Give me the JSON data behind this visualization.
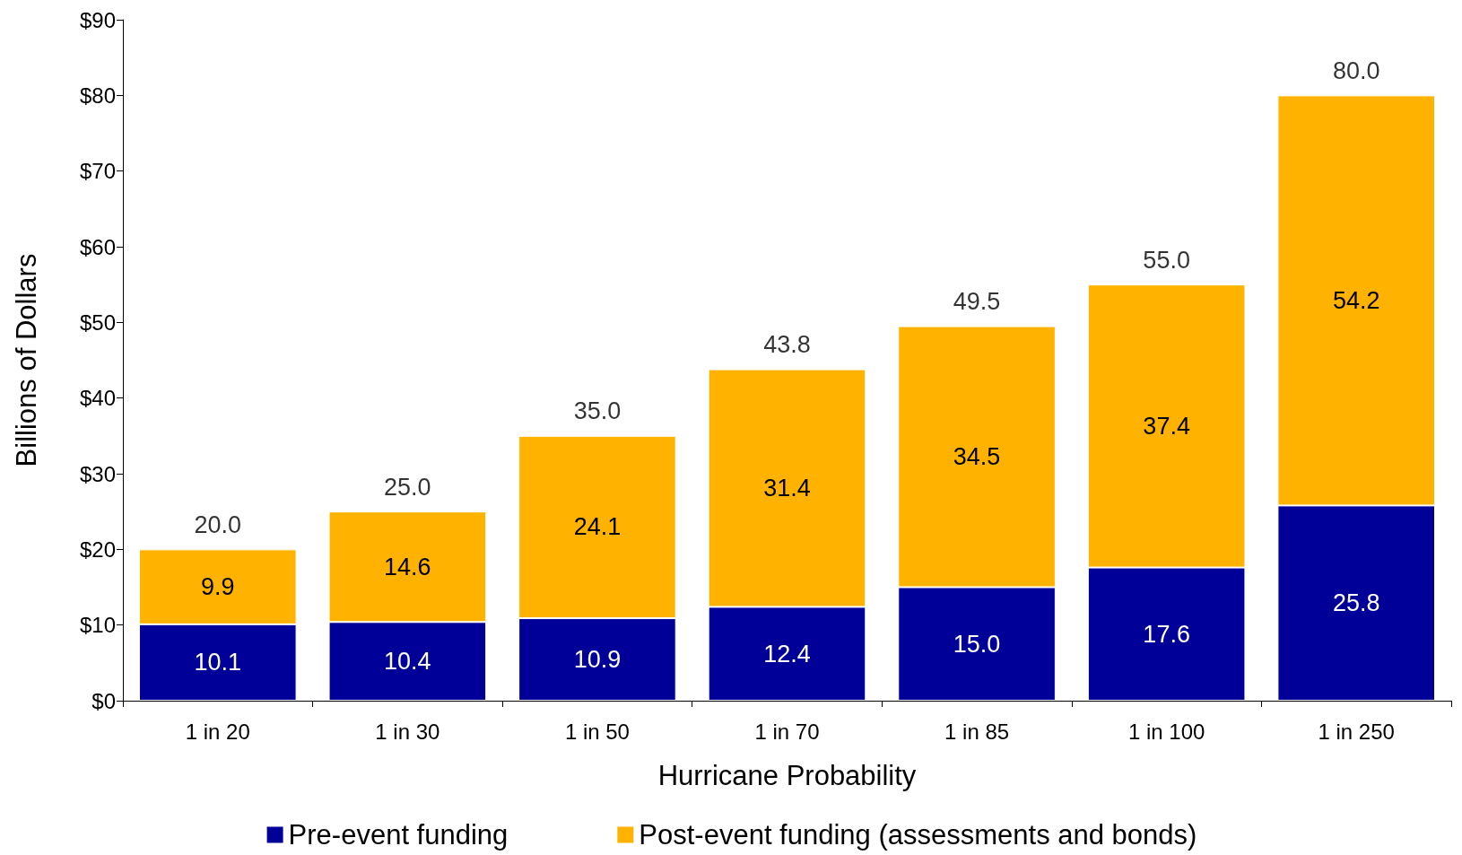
{
  "chart_data": {
    "type": "bar",
    "stacked": true,
    "xlabel": "Hurricane Probability",
    "ylabel": "Billions of Dollars",
    "categories": [
      "1 in 20",
      "1 in 30",
      "1 in 50",
      "1 in 70",
      "1 in 85",
      "1 in 100",
      "1 in 250"
    ],
    "series": [
      {
        "name": "Pre-event funding",
        "color": "#000099",
        "values": [
          10.1,
          10.4,
          10.9,
          12.4,
          15.0,
          17.6,
          25.8
        ],
        "value_labels": [
          "10.1",
          "10.4",
          "10.9",
          "12.4",
          "15.0",
          "17.6",
          "25.8"
        ]
      },
      {
        "name": "Post-event funding (assessments and bonds)",
        "color": "#ffb300",
        "values": [
          9.9,
          14.6,
          24.1,
          31.4,
          34.5,
          37.4,
          54.2
        ],
        "value_labels": [
          "9.9",
          "14.6",
          "24.1",
          "31.4",
          "34.5",
          "37.4",
          "54.2"
        ]
      }
    ],
    "totals": [
      "20.0",
      "25.0",
      "35.0",
      "43.8",
      "49.5",
      "55.0",
      "80.0"
    ],
    "ylim": [
      0,
      90
    ],
    "yticks": [
      {
        "value": 0,
        "label": "$0"
      },
      {
        "value": 10,
        "label": "$10"
      },
      {
        "value": 20,
        "label": "$20"
      },
      {
        "value": 30,
        "label": "$30"
      },
      {
        "value": 40,
        "label": "$40"
      },
      {
        "value": 50,
        "label": "$50"
      },
      {
        "value": 60,
        "label": "$60"
      },
      {
        "value": 70,
        "label": "$70"
      },
      {
        "value": 80,
        "label": "$80"
      },
      {
        "value": 90,
        "label": "$90"
      }
    ],
    "grid": false,
    "legend": "bottom"
  }
}
